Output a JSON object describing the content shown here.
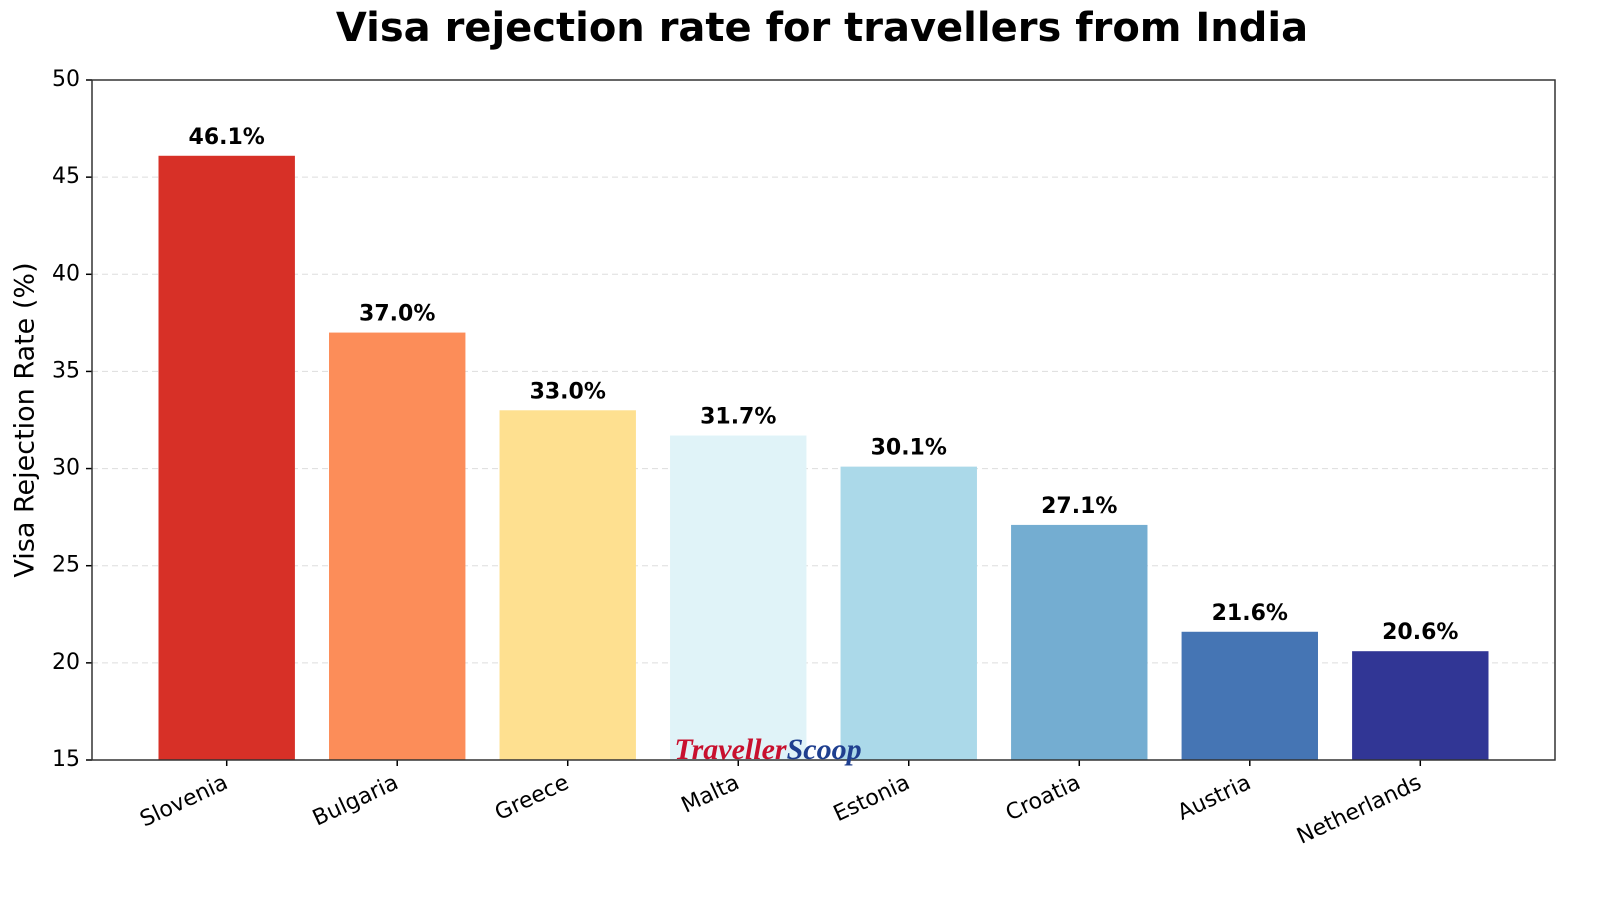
{
  "chart_data": {
    "type": "bar",
    "title": "Visa rejection rate for travellers from India",
    "y_label": "Visa Rejection Rate (%)",
    "categories": [
      "Slovenia",
      "Bulgaria",
      "Greece",
      "Malta",
      "Estonia",
      "Croatia",
      "Austria",
      "Netherlands"
    ],
    "values": [
      46.1,
      37.0,
      33.0,
      31.7,
      30.1,
      27.1,
      21.6,
      20.6
    ],
    "value_labels": [
      "46.1%",
      "37.0%",
      "33.0%",
      "31.7%",
      "30.1%",
      "27.1%",
      "21.6%",
      "20.6%"
    ],
    "colors": [
      "#d73027",
      "#fc8d59",
      "#fee090",
      "#e0f3f8",
      "#abd9e9",
      "#74add1",
      "#4575b4",
      "#313695"
    ],
    "ylim": [
      15,
      50
    ],
    "yticks": [
      15,
      20,
      25,
      30,
      35,
      40,
      45,
      50
    ],
    "grid": true,
    "watermark": [
      "Traveller",
      "Scoop"
    ]
  }
}
